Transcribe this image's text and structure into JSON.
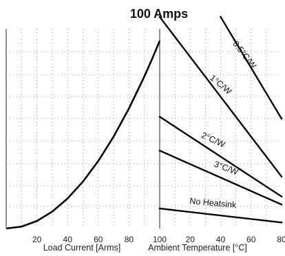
{
  "chart_data": [
    {
      "type": "line",
      "title": "100 Amps",
      "xlabel": "Load Current [Arms]",
      "ylabel": "",
      "xlim": [
        0,
        100
      ],
      "xticks": [
        20,
        40,
        60,
        80,
        100
      ],
      "grid": true,
      "series": [
        {
          "x": [
            0,
            10,
            20,
            30,
            40,
            50,
            60,
            70,
            80,
            90,
            95,
            100
          ],
          "y": [
            0.0,
            0.01,
            0.04,
            0.09,
            0.16,
            0.25,
            0.36,
            0.49,
            0.64,
            0.81,
            0.9025,
            1.0
          ]
        }
      ]
    },
    {
      "type": "line",
      "title": "",
      "xlabel": "Ambient Temperature [°C]",
      "ylabel": "",
      "xlim": [
        0,
        80
      ],
      "xticks": [
        20,
        40,
        60,
        80
      ],
      "xtick_labels": [
        "20",
        "40",
        "60",
        "80"
      ],
      "grid": true,
      "series": [
        {
          "name": "0.5°C/W",
          "x": [
            40,
            80
          ],
          "y": [
            1.06,
            0.55
          ]
        },
        {
          "name": "1°C/W",
          "x": [
            0,
            80
          ],
          "y": [
            1.06,
            0.26
          ]
        },
        {
          "name": "2°C/W",
          "x": [
            0,
            80
          ],
          "y": [
            0.56,
            0.16
          ]
        },
        {
          "name": "3°C/W",
          "x": [
            0,
            80
          ],
          "y": [
            0.39,
            0.12
          ]
        },
        {
          "name": "No Heatsink",
          "x": [
            0,
            80
          ],
          "y": [
            0.1,
            0.03
          ]
        }
      ]
    }
  ]
}
